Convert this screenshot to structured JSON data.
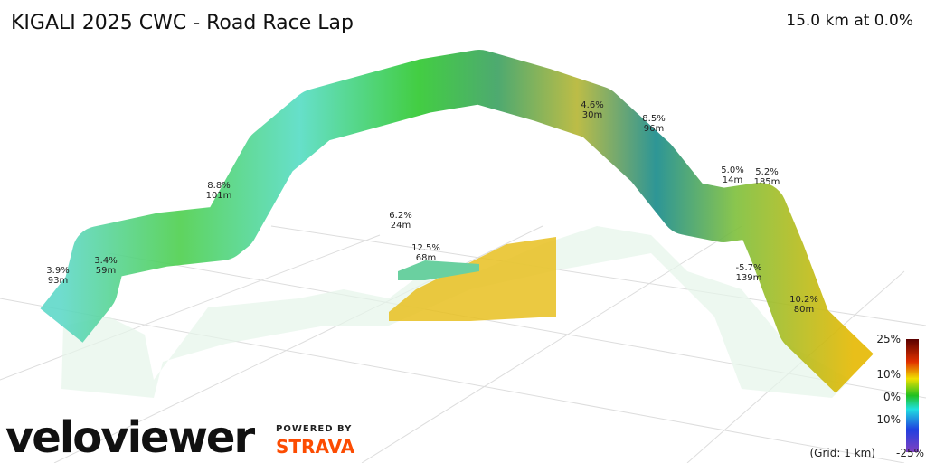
{
  "header": {
    "title": "KIGALI 2025 CWC - Road Race Lap",
    "summary": "15.0 km at 0.0%"
  },
  "annotations": [
    {
      "grade": "3.9%",
      "length": "93m"
    },
    {
      "grade": "3.4%",
      "length": "59m"
    },
    {
      "grade": "8.8%",
      "length": "101m"
    },
    {
      "grade": "6.2%",
      "length": "24m"
    },
    {
      "grade": "12.5%",
      "length": "68m"
    },
    {
      "grade": "4.6%",
      "length": "30m"
    },
    {
      "grade": "8.5%",
      "length": "96m"
    },
    {
      "grade": "5.0%",
      "length": "14m"
    },
    {
      "grade": "5.2%",
      "length": "185m"
    },
    {
      "grade": "-5.7%",
      "length": "139m"
    },
    {
      "grade": "10.2%",
      "length": "80m"
    }
  ],
  "legend": {
    "labels": [
      "25%",
      "10%",
      "0%",
      "-10%",
      "-25%"
    ],
    "grid_note": "(Grid: 1 km)"
  },
  "branding": {
    "logo": "veloviewer",
    "powered": "POWERED BY",
    "partner": "STRAVA"
  }
}
